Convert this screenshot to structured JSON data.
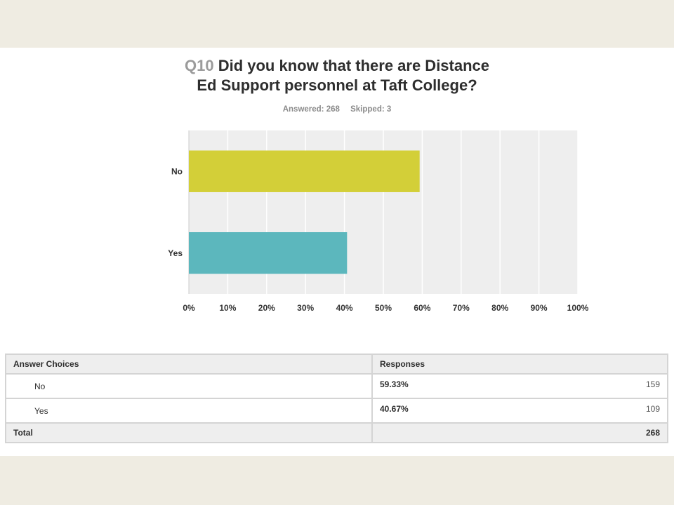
{
  "question": {
    "number": "Q10",
    "title_line1": "Did you know that there are Distance",
    "title_line2": "Ed Support personnel at Taft College?",
    "answered": "Answered: 268",
    "skipped": "Skipped: 3"
  },
  "chart_data": {
    "type": "bar",
    "orientation": "horizontal",
    "categories": [
      "No",
      "Yes"
    ],
    "values": [
      59.33,
      40.67
    ],
    "colors": [
      "#d3cf38",
      "#5cb7bd"
    ],
    "x_ticks": [
      "0%",
      "10%",
      "20%",
      "30%",
      "40%",
      "50%",
      "60%",
      "70%",
      "80%",
      "90%",
      "100%"
    ],
    "xlim": [
      0,
      100
    ],
    "grid": true
  },
  "table": {
    "headers": [
      "Answer Choices",
      "Responses"
    ],
    "rows": [
      {
        "choice": "No",
        "percent": "59.33%",
        "count": "159"
      },
      {
        "choice": "Yes",
        "percent": "40.67%",
        "count": "109"
      }
    ],
    "total_label": "Total",
    "total_count": "268"
  }
}
